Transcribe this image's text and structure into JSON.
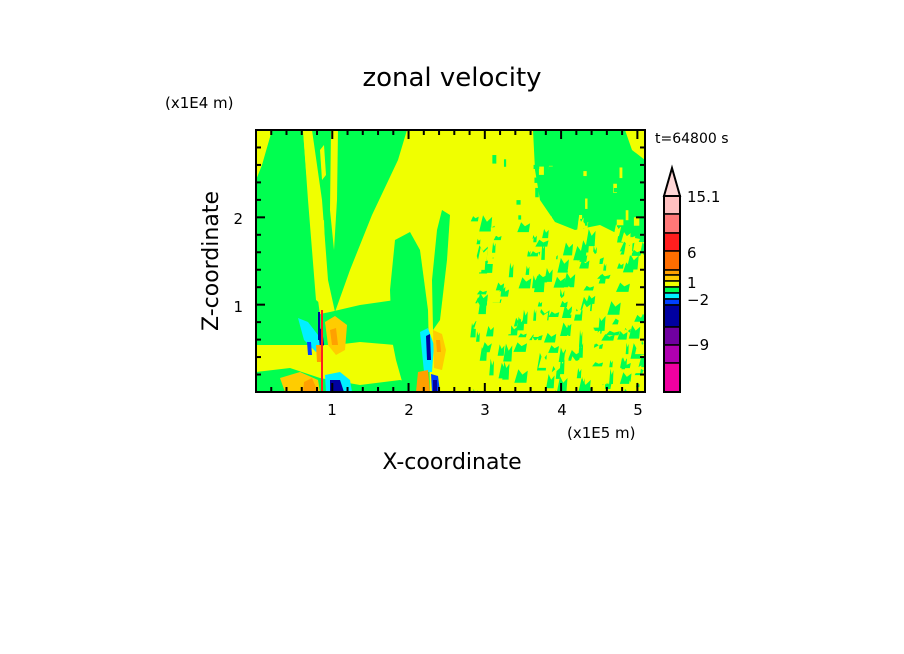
{
  "chart_data": {
    "type": "heatmap",
    "subtype": "filled-contour",
    "title": "zonal velocity",
    "xlabel": "X-coordinate",
    "ylabel": "Z-coordinate",
    "x_unit_label": "(x1E5 m)",
    "y_unit_label": "(x1E4 m)",
    "time_label": "t=64800 s",
    "xlim": [
      0,
      5.1
    ],
    "ylim": [
      0,
      3
    ],
    "x_ticks": [
      "1",
      "2",
      "3",
      "4",
      "5"
    ],
    "x_tick_values": [
      1,
      2,
      3,
      4,
      5
    ],
    "y_ticks": [
      "1",
      "2"
    ],
    "y_tick_values": [
      1,
      2
    ],
    "colorbar": {
      "labels": [
        "15.1",
        "6",
        "1",
        "−2",
        "−9"
      ],
      "colors_top_to_bottom": [
        "#ffd6d6",
        "#ffc0c0",
        "#ff7878",
        "#ff1e1e",
        "#ff6e00",
        "#ffa000",
        "#ffcc00",
        "#f0ff00",
        "#00ff50",
        "#00f0ff",
        "#0040ff",
        "#0000a0",
        "#7000a0",
        "#b000b0",
        "#f000a0"
      ],
      "extend": "max"
    },
    "field_colors": {
      "yellow": "#f0ff00",
      "green": "#00ff50",
      "cyan": "#00f0ff",
      "blue": "#0040ff",
      "navy": "#0000a0",
      "orange": "#ffa000",
      "light_orange": "#ffcc00",
      "red": "#ff1e1e"
    }
  }
}
